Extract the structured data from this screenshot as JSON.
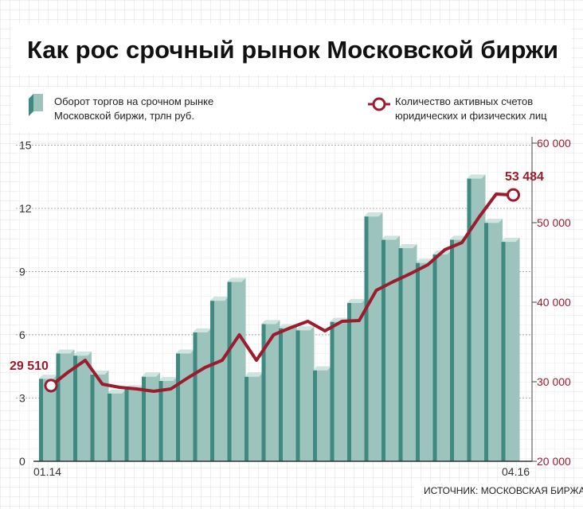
{
  "title": "Как рос срочный рынок Московской биржи",
  "legend": {
    "bars": [
      "Оборот торгов на срочном рынке",
      "Московской биржи, трлн руб."
    ],
    "line": [
      "Количество активных счетов",
      "юридических и физических лиц"
    ]
  },
  "source": "ИСТОЧНИК: МОСКОВСКАЯ БИРЖА",
  "colors": {
    "bar_front": "#9cc3bc",
    "bar_side": "#3f8a80",
    "bar_top": "#cfe3df",
    "line": "#9c1b2c",
    "grid": "#dcdcdc"
  },
  "chart_data": {
    "type": "bar+line",
    "x_tick_labels": [
      "01.14",
      "04.16"
    ],
    "left_axis": {
      "ticks": [
        "0",
        "3",
        "6",
        "9",
        "12",
        "15"
      ],
      "ylim": [
        0,
        15
      ]
    },
    "right_axis": {
      "ticks": [
        "20 000",
        "30 000",
        "40 000",
        "50 000",
        "60 000"
      ],
      "ylim": [
        20000,
        60000
      ]
    },
    "series": [
      {
        "kind": "bar",
        "axis": "left",
        "values": [
          4.1,
          5.3,
          5.2,
          4.3,
          3.4,
          3.6,
          4.2,
          4.0,
          5.3,
          6.3,
          7.8,
          8.7,
          4.2,
          6.7,
          6.5,
          6.4,
          4.5,
          6.8,
          7.7,
          11.8,
          10.7,
          10.3,
          9.6,
          10.0,
          10.7,
          13.6,
          11.5,
          10.6
        ]
      },
      {
        "kind": "line",
        "axis": "right",
        "values": [
          29510,
          31200,
          32700,
          29700,
          29300,
          29100,
          28800,
          29100,
          30500,
          31800,
          32700,
          35900,
          32700,
          35900,
          36800,
          37600,
          36400,
          37600,
          37700,
          41500,
          42600,
          43600,
          44700,
          46600,
          47500,
          50700,
          53600,
          53484
        ]
      }
    ],
    "annotations": {
      "first": "29 510",
      "last": "53 484"
    }
  }
}
